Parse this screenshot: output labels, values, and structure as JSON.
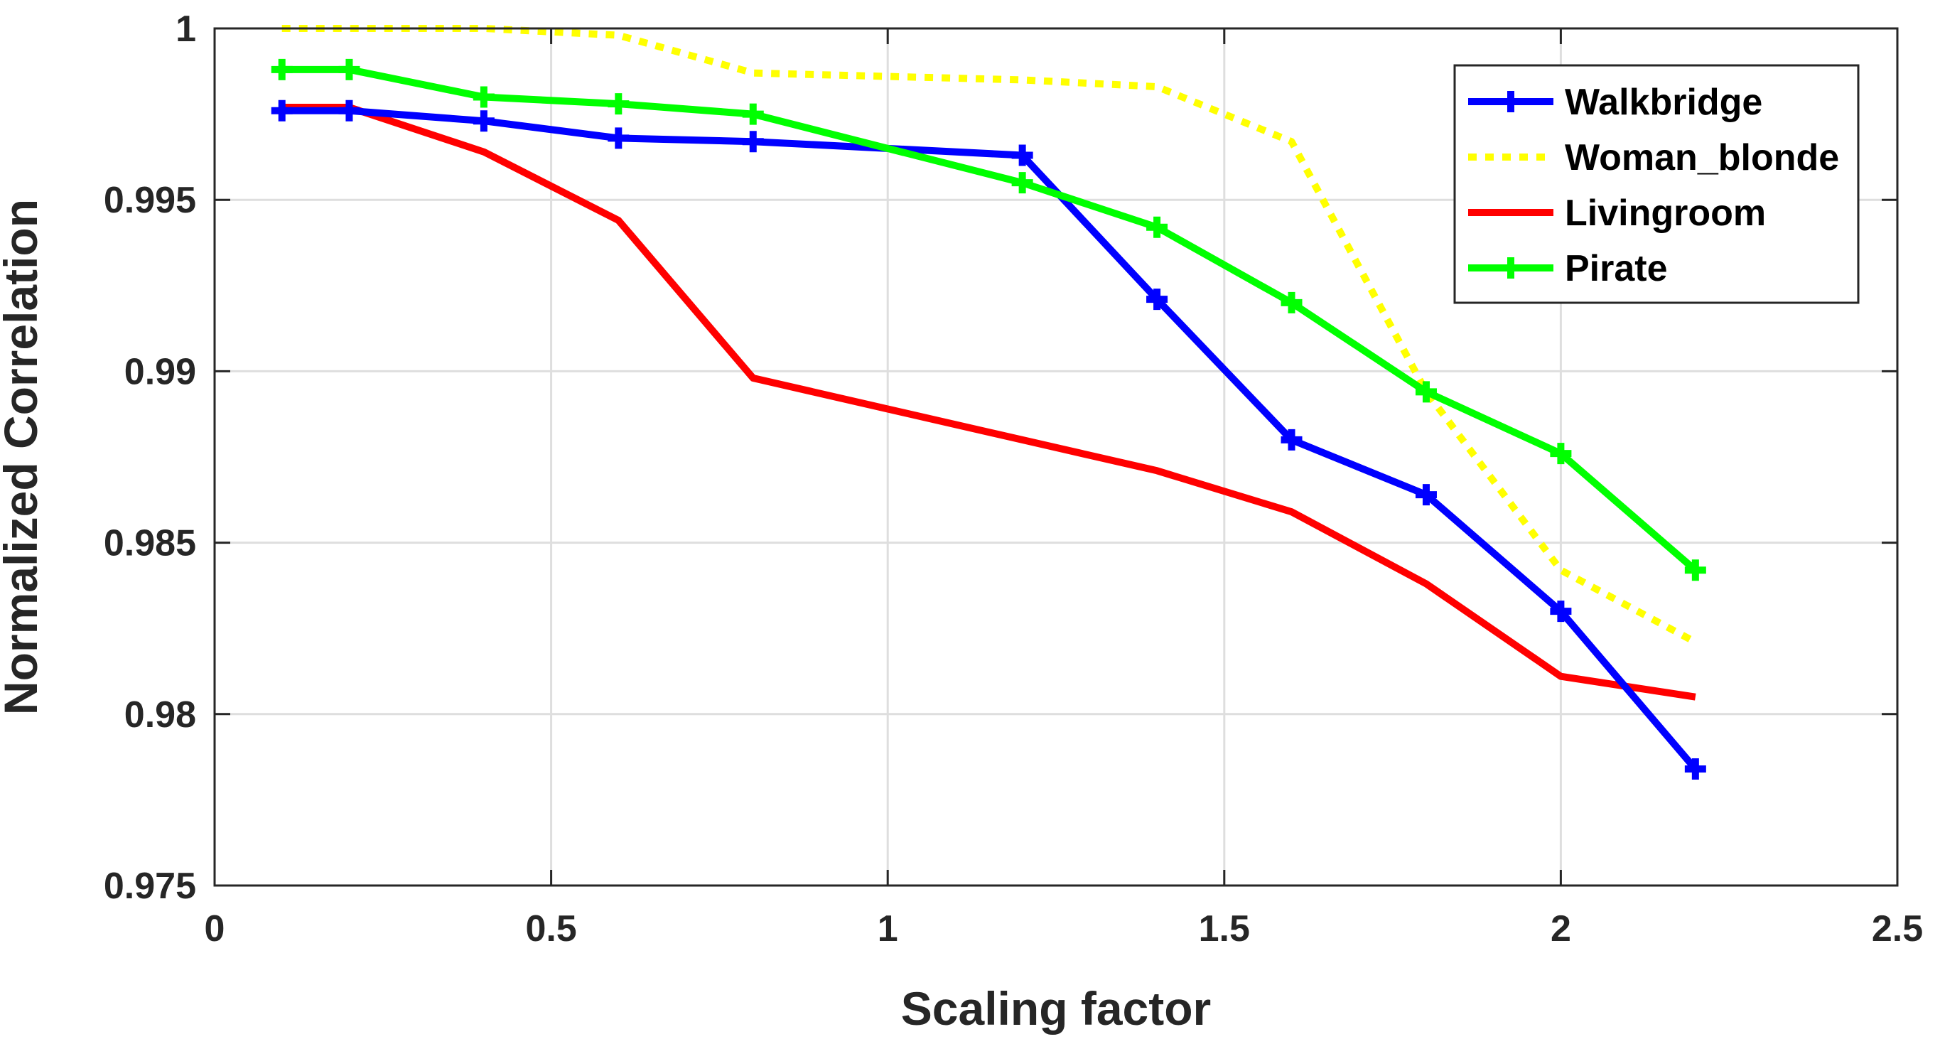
{
  "chart_data": {
    "type": "line",
    "title": "",
    "xlabel": "Scaling factor",
    "ylabel": "Normalized Correlation",
    "xlim": [
      0,
      2.5
    ],
    "ylim": [
      0.975,
      1
    ],
    "xticks": [
      0,
      0.5,
      1,
      1.5,
      2,
      2.5
    ],
    "xtick_labels": [
      "0",
      "0.5",
      "1",
      "1.5",
      "2",
      "2.5"
    ],
    "yticks": [
      0.975,
      0.98,
      0.985,
      0.99,
      0.995,
      1
    ],
    "ytick_labels": [
      "0.975",
      "0.98",
      "0.985",
      "0.99",
      "0.995",
      "1"
    ],
    "grid": true,
    "legend_position": "top-right",
    "series": [
      {
        "name": "Walkbridge",
        "color": "#0000FF",
        "style": "solid",
        "marker": "plus",
        "x": [
          0.1,
          0.2,
          0.4,
          0.6,
          0.8,
          1.2,
          1.4,
          1.6,
          1.8,
          2.0,
          2.2
        ],
        "y": [
          0.9976,
          0.9976,
          0.9973,
          0.9968,
          0.9967,
          0.9963,
          0.9921,
          0.988,
          0.9864,
          0.983,
          0.9784
        ]
      },
      {
        "name": "Woman_blonde",
        "color": "#FFFF00",
        "style": "dotted",
        "marker": "none",
        "x": [
          0.1,
          0.2,
          0.4,
          0.6,
          0.8,
          1.2,
          1.4,
          1.6,
          1.8,
          2.0,
          2.2
        ],
        "y": [
          1.0,
          1.0,
          1.0,
          0.9998,
          0.9987,
          0.9985,
          0.9983,
          0.9967,
          0.9894,
          0.9842,
          0.9821
        ]
      },
      {
        "name": "Livingroom",
        "color": "#FF0000",
        "style": "solid",
        "marker": "none",
        "x": [
          0.1,
          0.2,
          0.4,
          0.6,
          0.8,
          1.2,
          1.4,
          1.6,
          1.8,
          2.0,
          2.2
        ],
        "y": [
          0.9977,
          0.9977,
          0.9964,
          0.9944,
          0.9898,
          0.988,
          0.9871,
          0.9859,
          0.9838,
          0.9811,
          0.9805
        ]
      },
      {
        "name": "Pirate",
        "color": "#00FF00",
        "style": "solid",
        "marker": "plus",
        "x": [
          0.1,
          0.2,
          0.4,
          0.6,
          0.8,
          1.2,
          1.4,
          1.6,
          1.8,
          2.0,
          2.2
        ],
        "y": [
          0.9988,
          0.9988,
          0.998,
          0.9978,
          0.9975,
          0.9955,
          0.9942,
          0.992,
          0.9894,
          0.9876,
          0.9842
        ]
      }
    ]
  }
}
